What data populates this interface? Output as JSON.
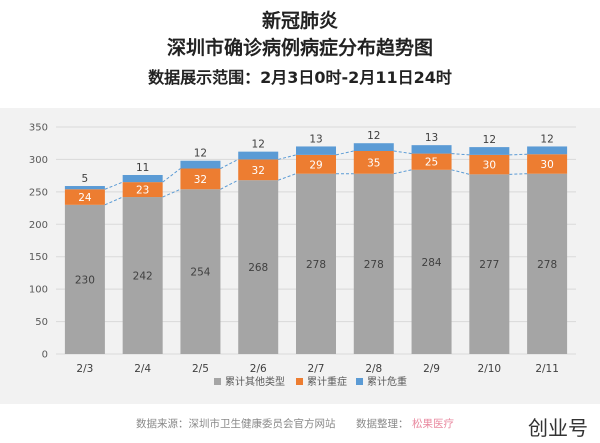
{
  "header": {
    "title_line1": "新冠肺炎",
    "title_line2": "深圳市确诊病例病症分布趋势图",
    "subtitle": "数据展示范围：2月3日0时-2月11日24时"
  },
  "footer": {
    "source": "数据来源：深圳市卫生健康委员会官方网站",
    "organizer_label": "数据整理：",
    "organizer": "松果医疗",
    "watermark": "创业号"
  },
  "colors": {
    "other": "#a5a5a5",
    "severe": "#ed7d31",
    "critical": "#5b9bd5",
    "connector": "#5b9bd5",
    "panel": "#f2f2f2",
    "grid": "#d9d9d9"
  },
  "chart_data": {
    "type": "bar",
    "stacked": true,
    "categories": [
      "2/3",
      "2/4",
      "2/5",
      "2/6",
      "2/7",
      "2/8",
      "2/9",
      "2/10",
      "2/11"
    ],
    "series": [
      {
        "name": "累计其他类型",
        "values": [
          230,
          242,
          254,
          268,
          278,
          278,
          284,
          277,
          278
        ]
      },
      {
        "name": "累计重症",
        "values": [
          24,
          23,
          32,
          32,
          29,
          35,
          25,
          30,
          30
        ]
      },
      {
        "name": "累计危重",
        "values": [
          5,
          11,
          12,
          12,
          13,
          12,
          13,
          12,
          12
        ]
      }
    ],
    "ylim": [
      0,
      350
    ],
    "yticks": [
      0,
      50,
      100,
      150,
      200,
      250,
      300,
      350
    ],
    "grid": true,
    "legend": "bottom"
  }
}
